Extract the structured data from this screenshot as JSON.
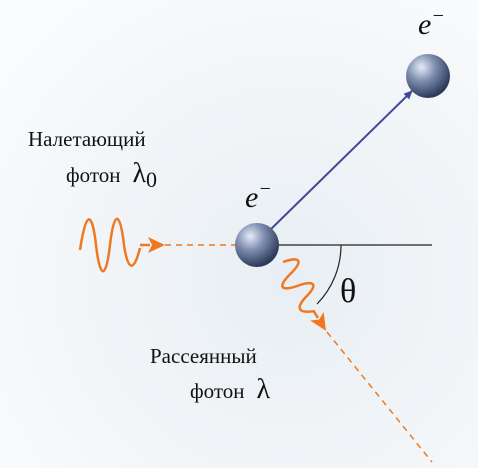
{
  "electron_after": {
    "symbol": "e",
    "charge": "−"
  },
  "electron_before": {
    "symbol": "e",
    "charge": "−"
  },
  "incident_photon": {
    "line1": "Налетающий",
    "line2": "фотон",
    "symbol": "λ",
    "subscript": "0"
  },
  "scattered_photon": {
    "line1": "Рассеянный",
    "line2": "фотон",
    "symbol": "λ"
  },
  "angle": "θ"
}
